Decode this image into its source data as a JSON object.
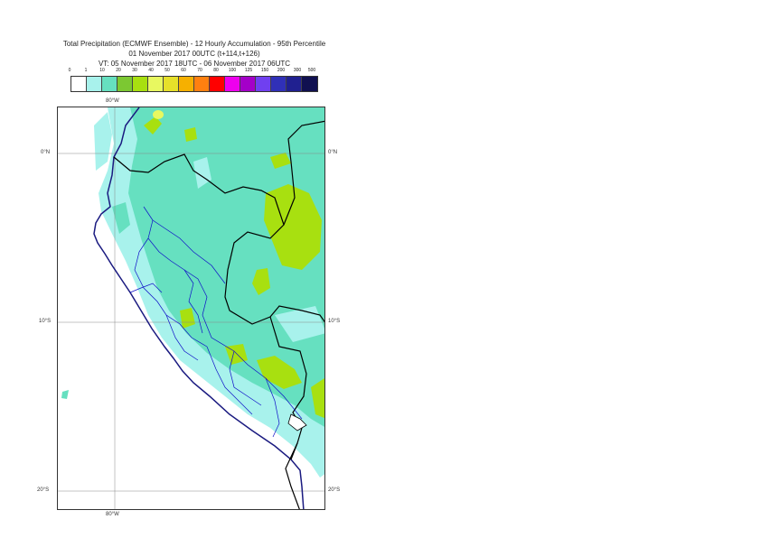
{
  "title": {
    "line1": "Total Precipitation (ECMWF Ensemble) - 12 Hourly Accumulation - 95th Percentile",
    "line2": "01 November 2017 00UTC (t+114,t+126)",
    "line3": "VT: 05 November 2017 18UTC - 06 November 2017 06UTC"
  },
  "legend": {
    "labels": [
      "0",
      "1",
      "10",
      "20",
      "30",
      "40",
      "50",
      "60",
      "70",
      "80",
      "100",
      "125",
      "150",
      "200",
      "300",
      "500"
    ],
    "colors": [
      "#ffffff",
      "#a8f2ec",
      "#66e0c0",
      "#7cc832",
      "#a8e010",
      "#e8f860",
      "#e6e02a",
      "#f6b000",
      "#ff8010",
      "#ff0000",
      "#ee00ee",
      "#a400c8",
      "#7040f0",
      "#3030b8",
      "#202090",
      "#101050"
    ]
  },
  "axes": {
    "lon_top": "80°W",
    "lon_bottom": "80°W",
    "lat_left": [
      "0°N",
      "10°S",
      "20°S"
    ],
    "lat_right": [
      "0°N",
      "10°S",
      "20°S"
    ]
  },
  "map": {
    "colors": {
      "ocean": "#ffffff",
      "light": "#a8f2ec",
      "medium": "#66e0c0",
      "heavy": "#a8e010",
      "heavy_dark": "#7cc832",
      "yellow": "#e8f860",
      "coast": "#1a1a80",
      "border": "#000000",
      "admin": "#1010c8",
      "grid": "#888888"
    }
  }
}
